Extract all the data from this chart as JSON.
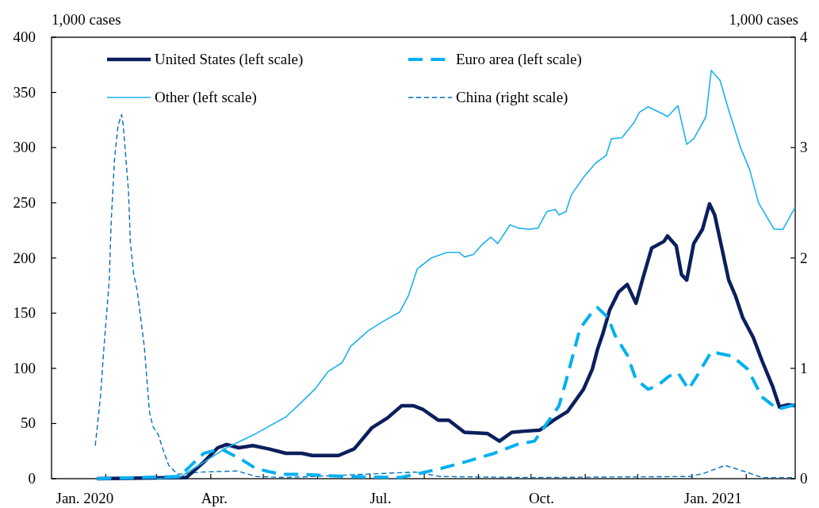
{
  "chart_data": {
    "type": "line",
    "ylabel": "1,000 cases",
    "y2label": "1,000 cases",
    "xlim": [
      "2020-01-01",
      "2021-03-01"
    ],
    "xticks": [
      {
        "value": "2020-01-20",
        "label": "Jan. 2020"
      },
      {
        "value": "2020-04-03",
        "label": "Apr."
      },
      {
        "value": "2020-07-07",
        "label": "Jul."
      },
      {
        "value": "2020-10-07",
        "label": "Oct."
      },
      {
        "value": "2021-01-13",
        "label": "Jan. 2021"
      },
      {
        "value": "2020-02-01",
        "label": null
      },
      {
        "value": "2020-03-01",
        "label": null
      },
      {
        "value": "2020-04-01",
        "label": null
      },
      {
        "value": "2020-05-01",
        "label": null
      },
      {
        "value": "2020-06-01",
        "label": null
      },
      {
        "value": "2020-07-01",
        "label": null
      },
      {
        "value": "2020-08-01",
        "label": null
      },
      {
        "value": "2020-09-01",
        "label": null
      },
      {
        "value": "2020-10-01",
        "label": null
      },
      {
        "value": "2020-11-01",
        "label": null
      },
      {
        "value": "2020-12-01",
        "label": null
      },
      {
        "value": "2021-01-01",
        "label": null
      },
      {
        "value": "2021-02-01",
        "label": null
      }
    ],
    "ylim": [
      0,
      400
    ],
    "yticks": [
      0,
      50,
      100,
      150,
      200,
      250,
      300,
      350,
      400
    ],
    "y2lim": [
      0,
      4
    ],
    "y2ticks": [
      0,
      1,
      2,
      3,
      4
    ],
    "grid": false,
    "legend": "top",
    "marker": "none",
    "series": [
      {
        "name": "United States (left scale)",
        "color": "#0b1f5c",
        "line_style": "solid",
        "x": [
          "2020-01-27",
          "2020-03-18",
          "2020-03-28",
          "2020-04-05",
          "2020-04-10",
          "2020-04-17",
          "2020-04-25",
          "2020-05-04",
          "2020-05-14",
          "2020-05-23",
          "2020-05-29",
          "2020-06-13",
          "2020-06-22",
          "2020-07-02",
          "2020-07-11",
          "2020-07-19",
          "2020-07-26",
          "2020-07-31",
          "2020-08-09",
          "2020-08-15",
          "2020-08-24",
          "2020-09-06",
          "2020-09-13",
          "2020-09-20",
          "2020-09-27",
          "2020-10-06",
          "2020-10-14",
          "2020-10-22",
          "2020-10-31",
          "2020-11-05",
          "2020-11-08",
          "2020-11-11",
          "2020-11-15",
          "2020-11-20",
          "2020-11-25",
          "2020-11-30",
          "2020-12-04",
          "2020-12-09",
          "2020-12-16",
          "2020-12-18",
          "2020-12-23",
          "2020-12-26",
          "2020-12-29",
          "2021-01-02",
          "2021-01-07",
          "2021-01-11",
          "2021-01-14",
          "2021-01-22",
          "2021-01-26",
          "2021-01-30",
          "2021-02-05",
          "2021-02-10",
          "2021-02-16",
          "2021-02-20",
          "2021-02-25",
          "2021-03-01"
        ],
        "values": [
          0,
          1,
          15,
          28,
          31,
          28,
          30,
          27,
          23,
          23,
          21,
          21,
          27,
          46,
          55,
          66,
          66,
          63,
          53,
          53,
          42,
          41,
          34,
          42,
          43,
          44,
          53,
          61,
          81,
          99,
          117,
          131,
          153,
          169,
          176,
          159,
          182,
          209,
          215,
          220,
          211,
          185,
          180,
          213,
          226,
          249,
          239,
          180,
          165,
          146,
          128,
          107,
          84,
          65,
          67,
          66
        ]
      },
      {
        "name": "Euro area (left scale)",
        "color": "#00b0f0",
        "line_style": "dashed",
        "x": [
          "2020-01-27",
          "2020-03-14",
          "2020-03-28",
          "2020-04-07",
          "2020-04-19",
          "2020-04-27",
          "2020-05-11",
          "2020-05-23",
          "2020-06-17",
          "2020-07-18",
          "2020-07-30",
          "2020-08-10",
          "2020-08-24",
          "2020-09-10",
          "2020-09-23",
          "2020-10-03",
          "2020-10-10",
          "2020-10-17",
          "2020-10-22",
          "2020-10-29",
          "2020-11-05",
          "2020-11-08",
          "2020-11-14",
          "2020-11-18",
          "2020-11-25",
          "2020-11-30",
          "2020-12-07",
          "2020-12-12",
          "2020-12-19",
          "2020-12-24",
          "2020-12-30",
          "2021-01-05",
          "2021-01-12",
          "2021-01-24",
          "2021-02-02",
          "2021-02-10",
          "2021-02-19",
          "2021-03-01"
        ],
        "values": [
          0,
          2,
          23,
          27,
          17,
          9,
          4,
          4,
          2,
          1,
          5,
          9,
          15,
          23,
          31,
          34,
          50,
          66,
          94,
          136,
          151,
          155,
          146,
          130,
          112,
          90,
          81,
          84,
          93,
          96,
          81,
          96,
          115,
          111,
          99,
          74,
          63,
          67
        ]
      },
      {
        "name": "Other (left scale)",
        "color": "#1ab2ee",
        "line_style": "solid",
        "x": [
          "2020-03-01",
          "2020-03-14",
          "2020-03-28",
          "2020-04-10",
          "2020-04-27",
          "2020-05-14",
          "2020-05-22",
          "2020-05-31",
          "2020-06-07",
          "2020-06-15",
          "2020-06-20",
          "2020-06-30",
          "2020-07-09",
          "2020-07-18",
          "2020-07-23",
          "2020-07-28",
          "2020-08-05",
          "2020-08-14",
          "2020-08-21",
          "2020-08-24",
          "2020-08-29",
          "2020-09-03",
          "2020-09-08",
          "2020-09-12",
          "2020-09-19",
          "2020-09-24",
          "2020-09-30",
          "2020-10-05",
          "2020-10-10",
          "2020-10-15",
          "2020-10-17",
          "2020-10-21",
          "2020-10-24",
          "2020-10-31",
          "2020-11-07",
          "2020-11-13",
          "2020-11-16",
          "2020-11-22",
          "2020-11-29",
          "2020-12-02",
          "2020-12-07",
          "2020-12-16",
          "2020-12-18",
          "2020-12-24",
          "2020-12-29",
          "2021-01-02",
          "2021-01-09",
          "2021-01-12",
          "2021-01-17",
          "2021-01-22",
          "2021-01-29",
          "2021-02-03",
          "2021-02-08",
          "2021-02-17",
          "2021-02-22",
          "2021-03-01"
        ],
        "values": [
          0,
          1,
          15,
          28,
          41,
          56,
          68,
          82,
          97,
          105,
          120,
          134,
          143,
          151,
          166,
          190,
          200,
          205,
          205,
          201,
          203,
          212,
          219,
          213,
          230,
          227,
          226,
          227,
          242,
          244,
          239,
          242,
          257,
          273,
          286,
          293,
          308,
          309,
          323,
          332,
          337,
          330,
          328,
          338,
          303,
          308,
          328,
          370,
          361,
          334,
          299,
          280,
          250,
          226,
          226,
          246
        ]
      },
      {
        "name": "China (right scale)",
        "color": "#0070c0",
        "line_style": "dashed",
        "axis": "y2",
        "x": [
          "2020-01-26",
          "2020-01-29",
          "2020-01-31",
          "2020-02-03",
          "2020-02-04",
          "2020-02-06",
          "2020-02-08",
          "2020-02-10",
          "2020-02-11",
          "2020-02-14",
          "2020-02-15",
          "2020-02-17",
          "2020-02-19",
          "2020-02-23",
          "2020-02-26",
          "2020-02-28",
          "2020-03-02",
          "2020-03-05",
          "2020-03-08",
          "2020-03-13",
          "2020-03-27",
          "2020-04-16",
          "2020-04-27",
          "2020-05-14",
          "2020-07-27",
          "2020-08-10",
          "2020-10-01",
          "2020-12-31",
          "2021-01-08",
          "2021-01-20",
          "2021-02-03",
          "2021-02-10",
          "2021-03-01"
        ],
        "values": [
          0.3,
          0.75,
          1.2,
          1.8,
          2.3,
          2.9,
          3.2,
          3.3,
          3.2,
          2.6,
          2.15,
          1.85,
          1.7,
          1.2,
          0.6,
          0.47,
          0.4,
          0.25,
          0.12,
          0.04,
          0.06,
          0.07,
          0.02,
          0.01,
          0.06,
          0.02,
          0.01,
          0.02,
          0.05,
          0.12,
          0.05,
          0.01,
          0.01
        ]
      }
    ]
  }
}
